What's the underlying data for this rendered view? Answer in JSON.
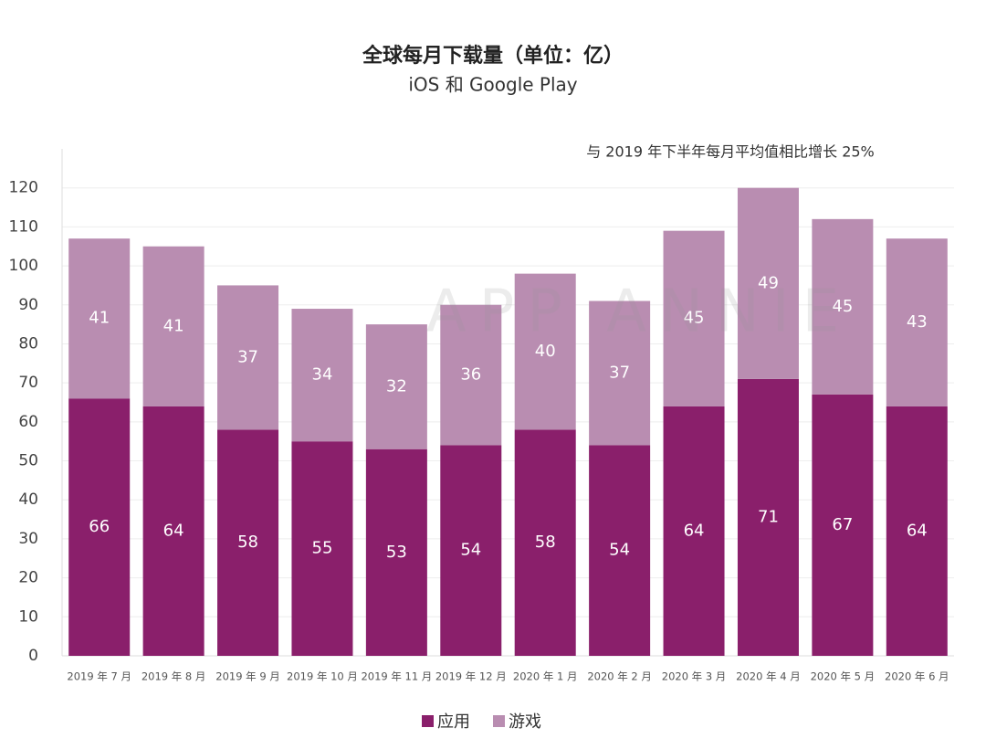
{
  "chart_data": {
    "type": "stacked_bar",
    "title": "全球每月下载量（单位：亿）",
    "subtitle": "iOS 和 Google Play",
    "annotation": "与 2019 年下半年每月平均值相比增长 25%",
    "watermark": "APP ANNIE",
    "categories": [
      "2019 年 7 月",
      "2019 年 8 月",
      "2019 年 9 月",
      "2019 年 10 月",
      "2019 年 11 月",
      "2019 年 12 月",
      "2020 年 1 月",
      "2020 年 2 月",
      "2020 年 3 月",
      "2020 年 4 月",
      "2020 年 5 月",
      "2020 年 6 月"
    ],
    "series": [
      {
        "name": "应用",
        "color": "#8a1f6b",
        "values": [
          66,
          64,
          58,
          55,
          53,
          54,
          58,
          54,
          64,
          71,
          67,
          64
        ]
      },
      {
        "name": "游戏",
        "color": "#b98db1",
        "values": [
          41,
          41,
          37,
          34,
          32,
          36,
          40,
          37,
          45,
          49,
          45,
          43
        ]
      }
    ],
    "ylim": [
      0,
      130
    ],
    "yticks": [
      0,
      10,
      20,
      30,
      40,
      50,
      60,
      70,
      80,
      90,
      100,
      110,
      120
    ],
    "grid": true,
    "legend": "bottom"
  }
}
